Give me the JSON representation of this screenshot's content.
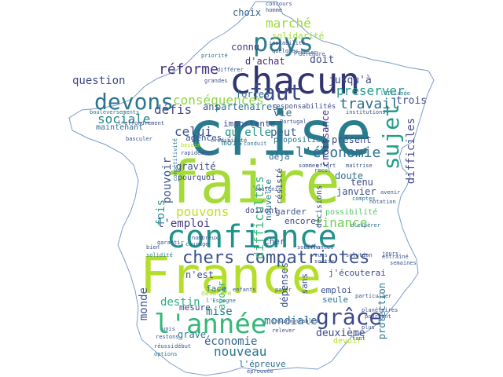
{
  "colors": {
    "background": "#ffffff",
    "outline": "#7a9ccc",
    "palette": [
      "#2c7688",
      "#9ed63a",
      "#3b4f8a",
      "#34a57c",
      "#5dc963",
      "#3f2363",
      "#d7e219",
      "#287c8e",
      "#1f9e89",
      "#482777"
    ]
  },
  "words": [
    {
      "text": "crise",
      "color": "#287c8e"
    },
    {
      "text": "faire",
      "color": "#a5db36"
    },
    {
      "text": "France",
      "color": "#b5de2b"
    },
    {
      "text": "confiance",
      "color": "#21918c"
    },
    {
      "text": "chacun",
      "color": "#31356e"
    },
    {
      "text": "pays",
      "color": "#2c7e8e"
    },
    {
      "text": "l'année",
      "color": "#35b779"
    },
    {
      "text": "devons",
      "color": "#2a768e"
    },
    {
      "text": "chers compatriotes",
      "color": "#3b528b"
    },
    {
      "text": "grâce",
      "color": "#3e4989"
    },
    {
      "text": "faut",
      "color": "#3e4a89"
    },
    {
      "text": "sujet",
      "color": "#1f9e89"
    },
    {
      "text": "réforme",
      "color": "#46337f"
    },
    {
      "text": "conséquences",
      "color": "#90d743"
    },
    {
      "text": "l'économie",
      "color": "#2f6c8e"
    },
    {
      "text": "préserver",
      "color": "#1f9a8a"
    },
    {
      "text": "travail",
      "color": "#2e6f8e"
    },
    {
      "text": "marché",
      "color": "#a0da39"
    },
    {
      "text": "sociale",
      "color": "#24868e"
    },
    {
      "text": "défis",
      "color": "#3f4889"
    },
    {
      "text": "celui",
      "color": "#3b528b"
    },
    {
      "text": "qu'elle",
      "color": "#1f948c"
    },
    {
      "text": "peut",
      "color": "#31688e"
    },
    {
      "text": "question",
      "color": "#3e4989"
    },
    {
      "text": "maintenant",
      "color": "#2d718e"
    },
    {
      "text": "pouvons",
      "color": "#c2df23"
    },
    {
      "text": "finance",
      "color": "#6ece58"
    },
    {
      "text": "l'emploi",
      "color": "#443983"
    },
    {
      "text": "nouveau",
      "color": "#2c738e"
    },
    {
      "text": "économie",
      "color": "#33638d"
    },
    {
      "text": "mondiale",
      "color": "#2d708e"
    },
    {
      "text": "deuxième",
      "color": "#3e4a89"
    },
    {
      "text": "destin",
      "color": "#28ae80"
    },
    {
      "text": "monde",
      "color": "#3b528b"
    },
    {
      "text": "fois",
      "color": "#1f988b"
    },
    {
      "text": "mise",
      "color": "#29798e"
    },
    {
      "text": "grave",
      "color": "#2a788e"
    },
    {
      "text": "difficultés",
      "color": "#35b779"
    },
    {
      "text": "difficiles",
      "color": "#3f4889"
    },
    {
      "text": "pouvoir",
      "color": "#3b528b"
    },
    {
      "text": "dépenses",
      "color": "#3c4f8a"
    },
    {
      "text": "protection",
      "color": "#2a768e"
    },
    {
      "text": "croissance",
      "color": "#46327e"
    },
    {
      "text": "possibilité",
      "color": "#54c568"
    },
    {
      "text": "trois",
      "color": "#3b528b"
    },
    {
      "text": "vie",
      "color": "#2f6c8e"
    },
    {
      "text": "doit",
      "color": "#3e4989"
    },
    {
      "text": "jusqu'à",
      "color": "#3e4a89"
    },
    {
      "text": "d'achat",
      "color": "#472c7a"
    },
    {
      "text": "choix",
      "color": "#33638d"
    },
    {
      "text": "connu",
      "color": "#443983"
    },
    {
      "text": "solidarité",
      "color": "#a0da39"
    },
    {
      "text": "ans",
      "color": "#3b528b"
    },
    {
      "text": "forces",
      "color": "#2f6c8e"
    },
    {
      "text": "partenaires",
      "color": "#2a768e"
    },
    {
      "text": "présent",
      "color": "#3e4a89"
    },
    {
      "text": "tenu",
      "color": "#3e4989"
    },
    {
      "text": "doute",
      "color": "#2e6f8e"
    },
    {
      "text": "janvier",
      "color": "#3b528b"
    },
    {
      "text": "gravité",
      "color": "#3b528b"
    },
    {
      "text": "importante",
      "color": "#3e4989"
    },
    {
      "text": "mois",
      "color": "#2a788e"
    },
    {
      "text": "agences",
      "color": "#3b528b"
    },
    {
      "text": "déjà",
      "color": "#33638d"
    },
    {
      "text": "résisté",
      "color": "#3e4989"
    },
    {
      "text": "nouvelle",
      "color": "#2a788e"
    },
    {
      "text": "garder",
      "color": "#3b528b"
    },
    {
      "text": "encore",
      "color": "#3e4989"
    },
    {
      "text": "doivent",
      "color": "#3e4989"
    },
    {
      "text": "cher",
      "color": "#3b528b"
    },
    {
      "text": "n'est",
      "color": "#3e4989"
    },
    {
      "text": "avoir",
      "color": "#35b779"
    },
    {
      "text": "face",
      "color": "#2f6c8e"
    },
    {
      "text": "sans",
      "color": "#3b528b"
    },
    {
      "text": "emploi",
      "color": "#3b528b"
    },
    {
      "text": "seule",
      "color": "#2a768e"
    },
    {
      "text": "mesure",
      "color": "#3e4989"
    },
    {
      "text": "j'écouterai",
      "color": "#3e4989"
    },
    {
      "text": "l'épreuve",
      "color": "#2d708e"
    },
    {
      "text": "devoir",
      "color": "#b5de2b"
    },
    {
      "text": "pourquoi",
      "color": "#3e4989"
    },
    {
      "text": "propositions",
      "color": "#2a768e"
    },
    {
      "text": "décisions",
      "color": "#3e4989"
    },
    {
      "text": "désordre",
      "color": "#a0da39"
    },
    {
      "text": "responsabilités",
      "color": "#3e4989"
    },
    {
      "text": "institutions",
      "color": "#3b528b"
    },
    {
      "text": "courage",
      "color": "#3b528b"
    },
    {
      "text": "enfants",
      "color": "#3b528b"
    },
    {
      "text": "solidité",
      "color": "#2a768e"
    },
    {
      "text": "bien",
      "color": "#3b528b"
    },
    {
      "text": "grandes",
      "color": "#3b528b"
    },
    {
      "text": "priorité",
      "color": "#2f6c8e"
    },
    {
      "text": "conduit",
      "color": "#2a768e"
    },
    {
      "text": "avenir",
      "color": "#3b528b"
    },
    {
      "text": "besoin",
      "color": "#b5de2b"
    },
    {
      "text": "rapidement",
      "color": "#3b528b"
    },
    {
      "text": "Portugal",
      "color": "#3b528b"
    },
    {
      "text": "premier",
      "color": "#3b528b"
    },
    {
      "text": "concours",
      "color": "#3b528b"
    },
    {
      "text": "homme",
      "color": "#3b528b"
    },
    {
      "text": "l'Irlande",
      "color": "#2a768e"
    },
    {
      "text": "différer",
      "color": "#3b528b"
    },
    {
      "text": "l'Espagne",
      "color": "#2a768e"
    },
    {
      "text": "maîtrise",
      "color": "#3b528b"
    },
    {
      "text": "effort",
      "color": "#3b528b"
    },
    {
      "text": "recul",
      "color": "#3b528b"
    },
    {
      "text": "comptes",
      "color": "#2a768e"
    },
    {
      "text": "quelques",
      "color": "#3b528b"
    },
    {
      "text": "instabilité",
      "color": "#3b528b"
    },
    {
      "text": "bouleversements",
      "color": "#2a768e"
    },
    {
      "text": "l'effondrement",
      "color": "#3b528b"
    },
    {
      "text": "basculer",
      "color": "#3b528b"
    },
    {
      "text": "compétitivité",
      "color": "#2a768e"
    },
    {
      "text": "nombreux",
      "color": "#3b528b"
    },
    {
      "text": "garantir",
      "color": "#3b528b"
    },
    {
      "text": "restons",
      "color": "#3b528b"
    },
    {
      "text": "unis",
      "color": "#3b528b"
    },
    {
      "text": "pourtant",
      "color": "#3b528b"
    },
    {
      "text": "planétaires",
      "color": "#3b528b"
    },
    {
      "text": "d'espérer",
      "color": "#2a768e"
    },
    {
      "text": "solution",
      "color": "#3b528b"
    },
    {
      "text": "payer",
      "color": "#3b528b"
    },
    {
      "text": "tant",
      "color": "#3b528b"
    },
    {
      "text": "plus",
      "color": "#3b528b"
    },
    {
      "text": "souffrances",
      "color": "#3b528b"
    },
    {
      "text": "particulier",
      "color": "#3b528b"
    },
    {
      "text": "relever",
      "color": "#3b528b"
    },
    {
      "text": "réussi",
      "color": "#3b528b"
    },
    {
      "text": "options",
      "color": "#2a768e"
    },
    {
      "text": "début",
      "color": "#3b528b"
    },
    {
      "text": "insurmontables",
      "color": "#3b528b"
    },
    {
      "text": "jours",
      "color": "#3b528b"
    },
    {
      "text": "semaines",
      "color": "#3b528b"
    },
    {
      "text": "sommes",
      "color": "#3b528b"
    },
    {
      "text": "notation",
      "color": "#3b528b"
    },
    {
      "text": "entraîné",
      "color": "#3b528b"
    },
    {
      "text": "sortir",
      "color": "#3b528b"
    },
    {
      "text": "ferme",
      "color": "#3b528b"
    },
    {
      "text": "défendre",
      "color": "#3b528b"
    },
    {
      "text": "crédibilité",
      "color": "#3b528b"
    },
    {
      "text": "éprouvée",
      "color": "#3b528b"
    },
    {
      "text": "vues",
      "color": "#3b528b"
    },
    {
      "text": "soutenir",
      "color": "#3b528b"
    }
  ]
}
